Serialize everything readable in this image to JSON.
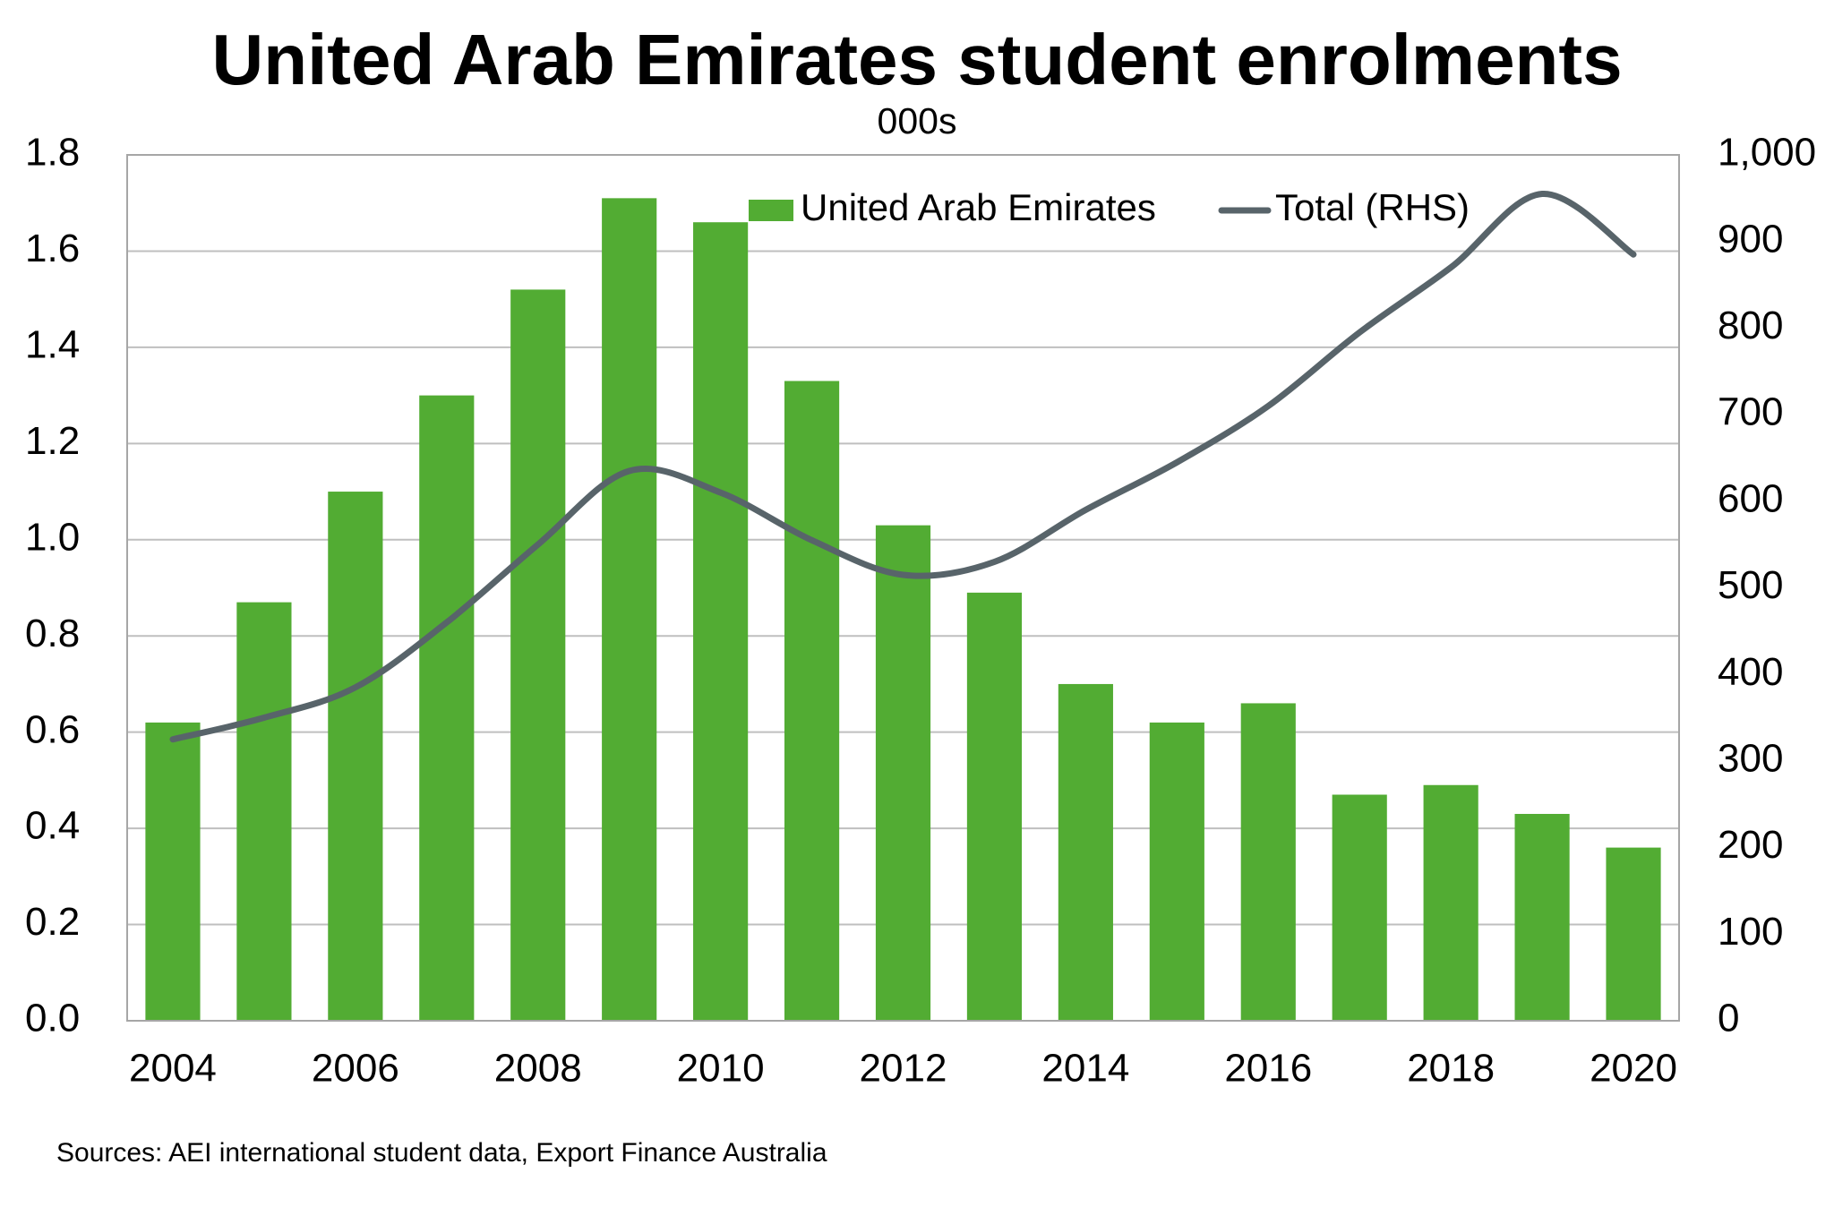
{
  "title": "United Arab Emirates student enrolments",
  "subtitle": "000s",
  "source": "Sources: AEI international student data, Export Finance Australia",
  "colors": {
    "bars": "#52ac33",
    "line": "#58646a",
    "grid": "#bfbfbf",
    "frame": "#a6a6a6"
  },
  "chart_data": {
    "type": "bar",
    "categories": [
      "2004",
      "2005",
      "2006",
      "2007",
      "2008",
      "2009",
      "2010",
      "2011",
      "2012",
      "2013",
      "2014",
      "2015",
      "2016",
      "2017",
      "2018",
      "2019",
      "2020"
    ],
    "x_tick_labels": [
      "2004",
      "2006",
      "2008",
      "2010",
      "2012",
      "2014",
      "2016",
      "2018",
      "2020"
    ],
    "series": [
      {
        "name": "United Arab Emirates",
        "type": "bar",
        "axis": "left",
        "values": [
          0.62,
          0.87,
          1.1,
          1.3,
          1.52,
          1.71,
          1.66,
          1.33,
          1.03,
          0.89,
          0.7,
          0.62,
          0.66,
          0.47,
          0.49,
          0.43,
          0.36
        ]
      },
      {
        "name": "Total (RHS)",
        "type": "line",
        "axis": "right",
        "values": [
          325,
          350,
          385,
          460,
          550,
          635,
          610,
          555,
          515,
          530,
          590,
          645,
          710,
          795,
          870,
          955,
          885
        ]
      }
    ],
    "y_left": {
      "ylim": [
        0,
        1.8
      ],
      "ticks": [
        "0.0",
        "0.2",
        "0.4",
        "0.6",
        "0.8",
        "1.0",
        "1.2",
        "1.4",
        "1.6",
        "1.8"
      ]
    },
    "y_right": {
      "ylim": [
        0,
        1000
      ],
      "ticks": [
        "0",
        "100",
        "200",
        "300",
        "400",
        "500",
        "600",
        "700",
        "800",
        "900",
        "1,000"
      ]
    },
    "grid": true,
    "legend_position": "top-center"
  }
}
